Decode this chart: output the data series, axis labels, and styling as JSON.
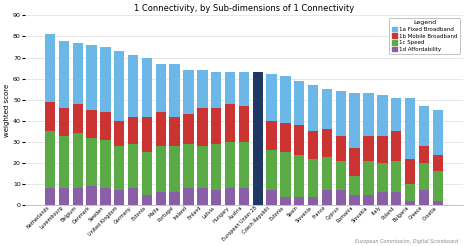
{
  "title": "1 Connectivity, by Sub-dimensions of 1 Connectivity",
  "ylabel": "weighted score",
  "watermark": "European Commission, Digital Scoreboard",
  "legend_labels": [
    "1a Fixed Broadband",
    "1b Mobile Broadband",
    "1c Speed",
    "1d Affordability"
  ],
  "colors": [
    "#6BB8E8",
    "#CC3333",
    "#5AAA46",
    "#8B5EA8"
  ],
  "eu28_color": "#1F3864",
  "categories": [
    "Netherlands",
    "Luxembourg",
    "Belgium",
    "Denmark",
    "Sweden",
    "United Kingdom",
    "Germany",
    "Estonia",
    "Malta",
    "Portugal",
    "Ireland",
    "Finland",
    "Latvia",
    "Hungary",
    "Austria",
    "European Union 28",
    "Czech Republic",
    "Estonia",
    "Spain",
    "Slovenia",
    "France",
    "Cyprus",
    "Romania",
    "Slovakia",
    "Italy",
    "Poland",
    "Bulgaria",
    "Greece",
    "Croatia"
  ],
  "afford": [
    8,
    8,
    8,
    9,
    8,
    7,
    8,
    5,
    6,
    6,
    8,
    8,
    7,
    8,
    8,
    7,
    7,
    4,
    4,
    4,
    7,
    7,
    5,
    5,
    6,
    6,
    2,
    7,
    2
  ],
  "speed": [
    27,
    25,
    26,
    23,
    23,
    21,
    21,
    20,
    22,
    22,
    21,
    20,
    22,
    22,
    22,
    20,
    19,
    21,
    20,
    18,
    16,
    14,
    9,
    16,
    14,
    15,
    8,
    13,
    14
  ],
  "mobile": [
    14,
    13,
    14,
    13,
    13,
    12,
    13,
    17,
    16,
    14,
    14,
    18,
    17,
    18,
    17,
    14,
    14,
    14,
    14,
    13,
    13,
    12,
    13,
    12,
    13,
    14,
    12,
    8,
    8
  ],
  "fixed": [
    32,
    32,
    29,
    31,
    31,
    33,
    29,
    28,
    23,
    25,
    21,
    18,
    17,
    15,
    16,
    22,
    22,
    22,
    21,
    22,
    19,
    21,
    26,
    20,
    19,
    16,
    29,
    19,
    21
  ],
  "ylim": [
    0,
    90
  ],
  "yticks": [
    0,
    10,
    20,
    30,
    40,
    50,
    60,
    70,
    80,
    90
  ],
  "bar_width": 0.75
}
